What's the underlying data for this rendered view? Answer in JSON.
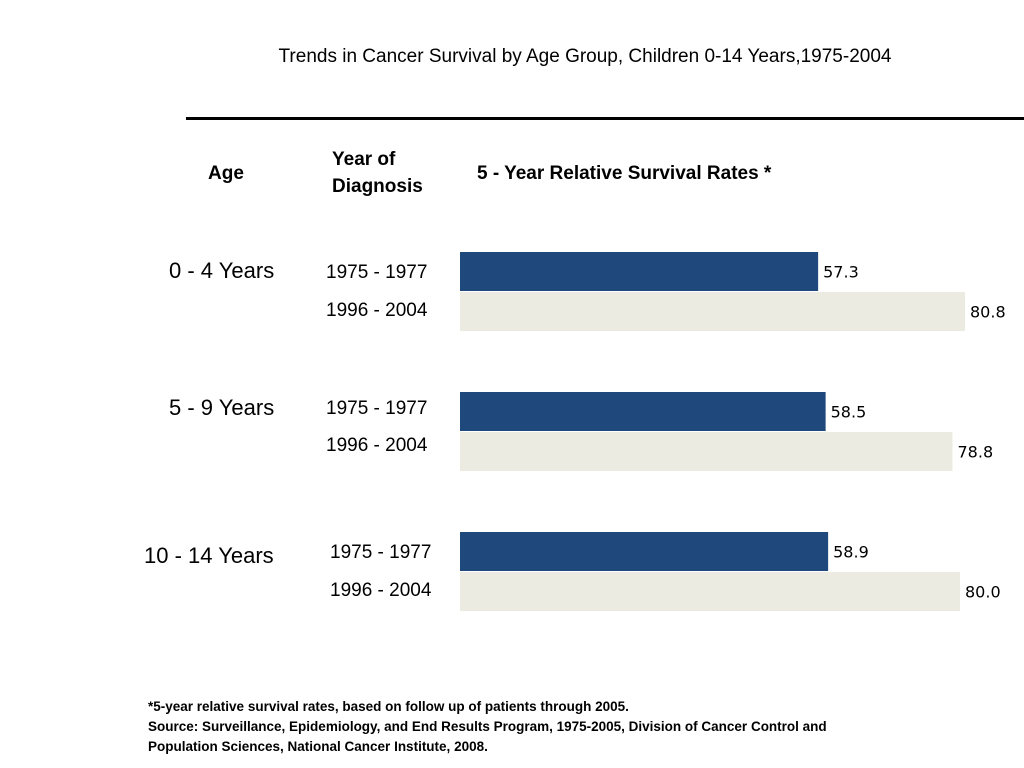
{
  "chart_data": {
    "type": "bar",
    "orientation": "horizontal",
    "title": "Trends in Cancer Survival by Age Group, Children 0-14 Years,1975-2004",
    "headers": {
      "age": "Age",
      "year": "Year of Diagnosis",
      "rate": "5 - Year Relative Survival Rates *"
    },
    "groups": [
      {
        "age": "0 - 4 Years",
        "bars": [
          {
            "period": "1975 - 1977",
            "value": 57.3,
            "label": "57.3"
          },
          {
            "period": "1996 - 2004",
            "value": 80.8,
            "label": "80.8"
          }
        ]
      },
      {
        "age": "5 - 9 Years",
        "bars": [
          {
            "period": "1975 - 1977",
            "value": 58.5,
            "label": "58.5"
          },
          {
            "period": "1996 - 2004",
            "value": 78.8,
            "label": "78.8"
          }
        ]
      },
      {
        "age": "10 - 14 Years",
        "bars": [
          {
            "period": "1975 - 1977",
            "value": 58.9,
            "label": "58.9"
          },
          {
            "period": "1996 - 2004",
            "value": 80.0,
            "label": "80.0"
          }
        ]
      }
    ],
    "colors": {
      "period_1975": "#1f497d",
      "period_1996": "#ecebe1"
    },
    "xlim": [
      0,
      100
    ],
    "grid": false
  },
  "footnote": {
    "line1": "*5-year relative survival rates, based on follow up of patients through 2005.",
    "line2": "Source: Surveillance, Epidemiology, and End Results Program, 1975-2005, Division of Cancer Control and",
    "line3": "Population Sciences, National Cancer Institute, 2008."
  }
}
